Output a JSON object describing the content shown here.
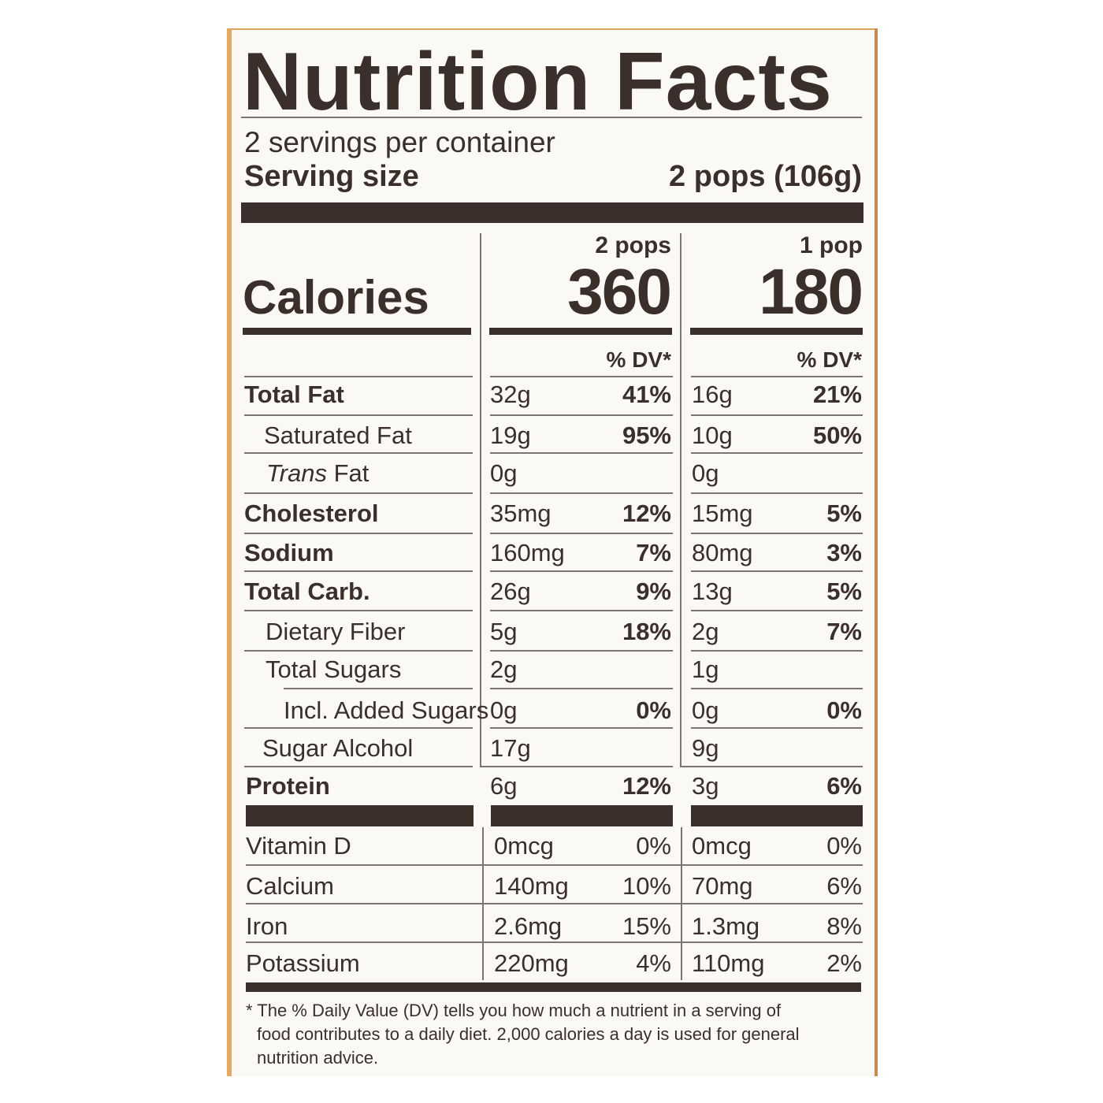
{
  "label": {
    "title": "Nutrition Facts",
    "servings_per_container": "2 servings per container",
    "serving_size_label": "Serving size",
    "serving_size_value": "2 pops (106g)",
    "columns": [
      {
        "header": "2 pops",
        "calories": "360",
        "dv_header": "% DV*"
      },
      {
        "header": "1 pop",
        "calories": "180",
        "dv_header": "% DV*"
      }
    ],
    "calories_label": "Calories",
    "nutrients": [
      {
        "name": "Total Fat",
        "c1_amount": "32g",
        "c1_dv": "41%",
        "c2_amount": "16g",
        "c2_dv": "21%"
      },
      {
        "name": "Saturated Fat",
        "c1_amount": "19g",
        "c1_dv": "95%",
        "c2_amount": "10g",
        "c2_dv": "50%"
      },
      {
        "name_italic": "Trans",
        "name_rest": " Fat",
        "c1_amount": "0g",
        "c1_dv": "",
        "c2_amount": "0g",
        "c2_dv": ""
      },
      {
        "name": "Cholesterol",
        "c1_amount": "35mg",
        "c1_dv": "12%",
        "c2_amount": "15mg",
        "c2_dv": "5%"
      },
      {
        "name": "Sodium",
        "c1_amount": "160mg",
        "c1_dv": "7%",
        "c2_amount": "80mg",
        "c2_dv": "3%"
      },
      {
        "name": "Total Carb.",
        "c1_amount": "26g",
        "c1_dv": "9%",
        "c2_amount": "13g",
        "c2_dv": "5%"
      },
      {
        "name": "Dietary Fiber",
        "c1_amount": "5g",
        "c1_dv": "18%",
        "c2_amount": "2g",
        "c2_dv": "7%"
      },
      {
        "name": "Total Sugars",
        "c1_amount": "2g",
        "c1_dv": "",
        "c2_amount": "1g",
        "c2_dv": ""
      },
      {
        "name": "Incl. Added Sugars",
        "c1_amount": "0g",
        "c1_dv": "0%",
        "c2_amount": "0g",
        "c2_dv": "0%"
      },
      {
        "name": "Sugar Alcohol",
        "c1_amount": "17g",
        "c1_dv": "",
        "c2_amount": "9g",
        "c2_dv": ""
      },
      {
        "name": "Protein",
        "c1_amount": "6g",
        "c1_dv": "12%",
        "c2_amount": "3g",
        "c2_dv": "6%"
      }
    ],
    "vitamins": [
      {
        "name": "Vitamin D",
        "c1_amount": "0mcg",
        "c1_dv": "0%",
        "c2_amount": "0mcg",
        "c2_dv": "0%"
      },
      {
        "name": "Calcium",
        "c1_amount": "140mg",
        "c1_dv": "10%",
        "c2_amount": "70mg",
        "c2_dv": "6%"
      },
      {
        "name": "Iron",
        "c1_amount": "2.6mg",
        "c1_dv": "15%",
        "c2_amount": "1.3mg",
        "c2_dv": "8%"
      },
      {
        "name": "Potassium",
        "c1_amount": "220mg",
        "c1_dv": "4%",
        "c2_amount": "110mg",
        "c2_dv": "2%"
      }
    ],
    "footnote_line1": "* The % Daily Value (DV) tells you how much a nutrient in a serving of",
    "footnote_line2": "food contributes to a daily diet. 2,000 calories a day is used for general",
    "footnote_line3": "nutrition advice."
  }
}
